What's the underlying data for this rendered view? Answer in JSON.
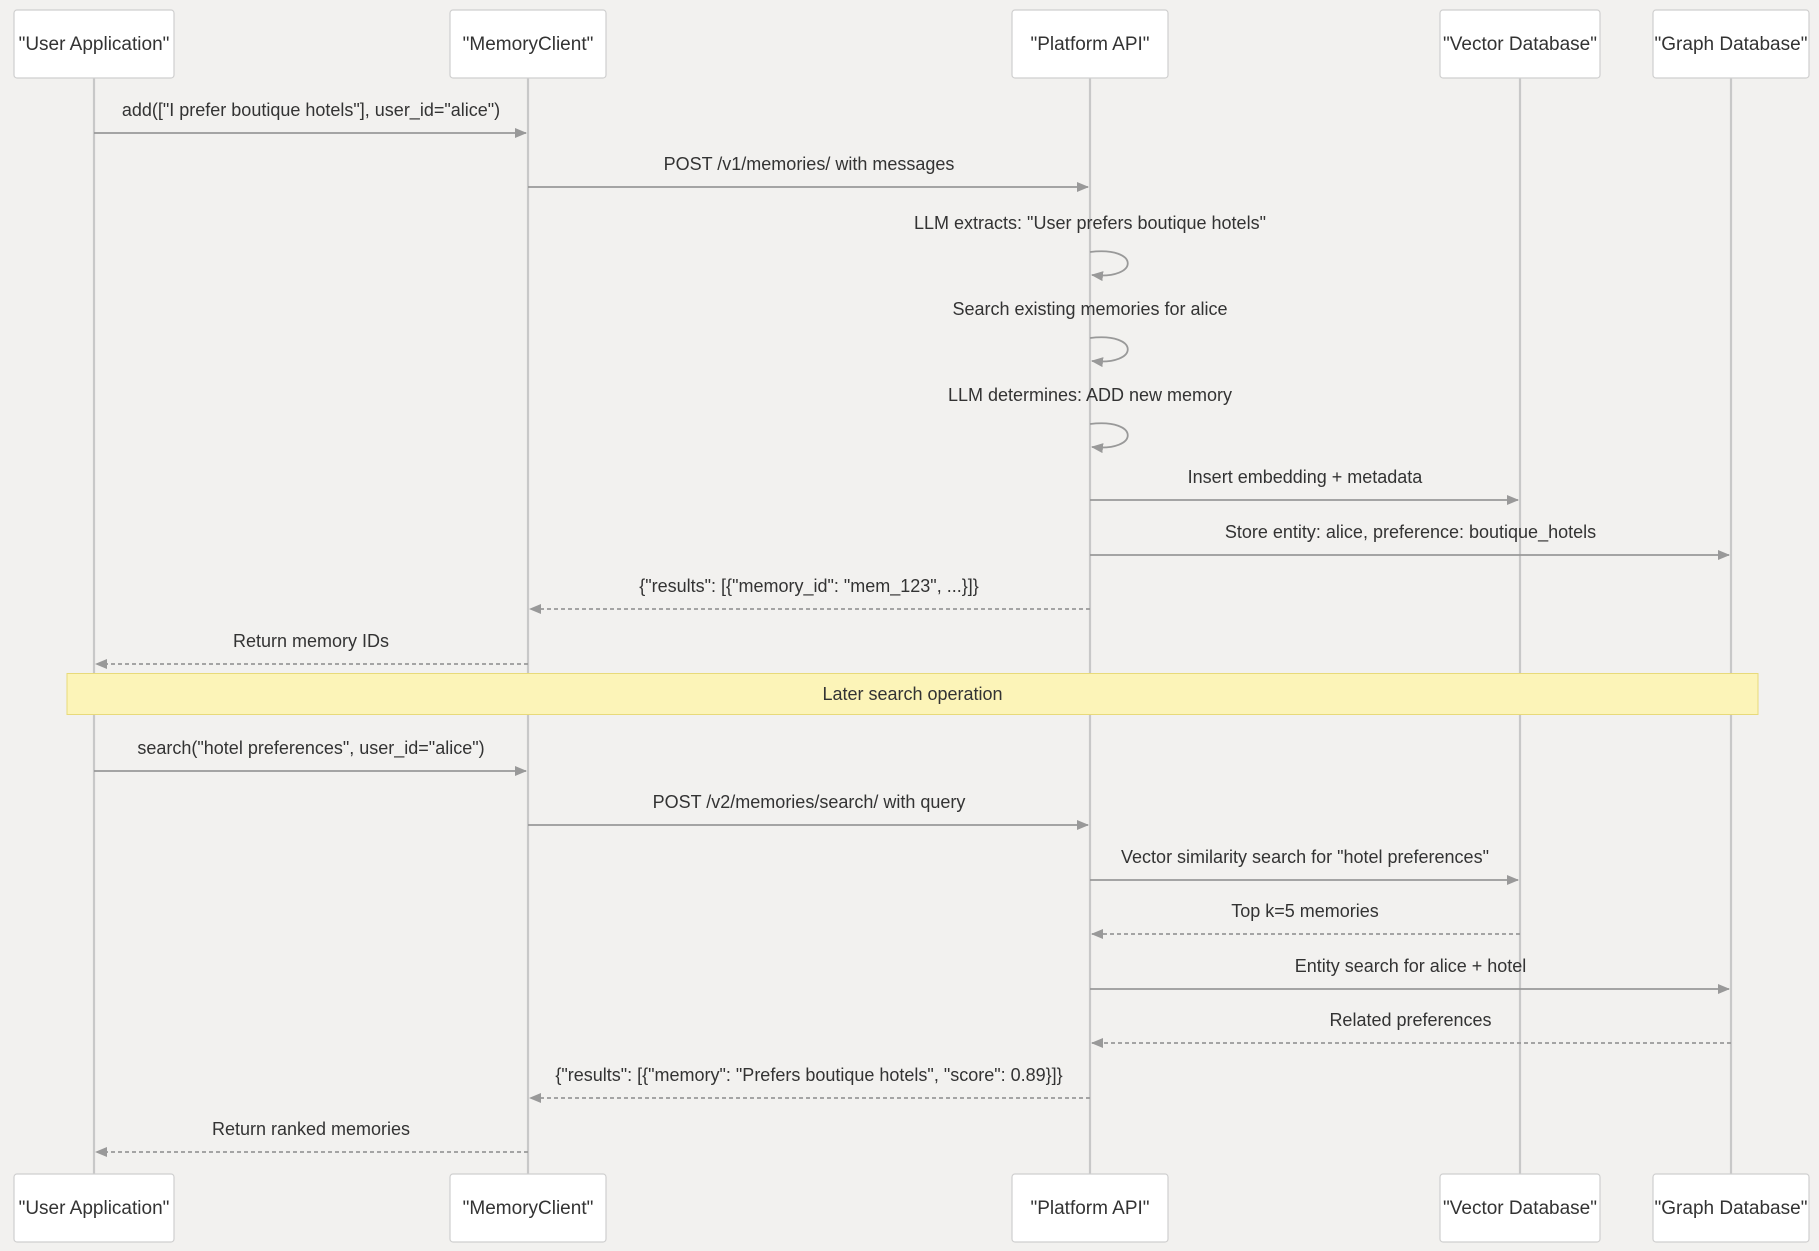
{
  "participants": [
    {
      "id": "user",
      "label": "\"User Application\""
    },
    {
      "id": "client",
      "label": "\"MemoryClient\""
    },
    {
      "id": "api",
      "label": "\"Platform API\""
    },
    {
      "id": "vector",
      "label": "\"Vector Database\""
    },
    {
      "id": "graph",
      "label": "\"Graph Database\""
    }
  ],
  "steps": [
    {
      "kind": "msg",
      "from": "user",
      "to": "client",
      "style": "solid",
      "text": "add([\"I prefer boutique hotels\"], user_id=\"alice\")"
    },
    {
      "kind": "msg",
      "from": "client",
      "to": "api",
      "style": "solid",
      "text": "POST /v1/memories/ with messages"
    },
    {
      "kind": "self",
      "on": "api",
      "text": "LLM extracts: \"User prefers boutique hotels\""
    },
    {
      "kind": "self",
      "on": "api",
      "text": "Search existing memories for alice"
    },
    {
      "kind": "self",
      "on": "api",
      "text": "LLM determines: ADD new memory"
    },
    {
      "kind": "msg",
      "from": "api",
      "to": "vector",
      "style": "solid",
      "text": "Insert embedding + metadata"
    },
    {
      "kind": "msg",
      "from": "api",
      "to": "graph",
      "style": "solid",
      "text": "Store entity: alice, preference: boutique_hotels"
    },
    {
      "kind": "msg",
      "from": "api",
      "to": "client",
      "style": "dashed",
      "text": "{\"results\": [{\"memory_id\": \"mem_123\", ...}]}"
    },
    {
      "kind": "msg",
      "from": "client",
      "to": "user",
      "style": "dashed",
      "text": "Return memory IDs"
    },
    {
      "kind": "note",
      "text": "Later search operation"
    },
    {
      "kind": "msg",
      "from": "user",
      "to": "client",
      "style": "solid",
      "text": "search(\"hotel preferences\", user_id=\"alice\")"
    },
    {
      "kind": "msg",
      "from": "client",
      "to": "api",
      "style": "solid",
      "text": "POST /v2/memories/search/ with query"
    },
    {
      "kind": "msg",
      "from": "api",
      "to": "vector",
      "style": "solid",
      "text": "Vector similarity search for \"hotel preferences\""
    },
    {
      "kind": "msg",
      "from": "vector",
      "to": "api",
      "style": "dashed",
      "text": "Top k=5 memories"
    },
    {
      "kind": "msg",
      "from": "api",
      "to": "graph",
      "style": "solid",
      "text": "Entity search for alice + hotel"
    },
    {
      "kind": "msg",
      "from": "graph",
      "to": "api",
      "style": "dashed",
      "text": "Related preferences"
    },
    {
      "kind": "msg",
      "from": "api",
      "to": "client",
      "style": "dashed",
      "text": "{\"results\": [{\"memory\": \"Prefers boutique hotels\", \"score\": 0.89}]}"
    },
    {
      "kind": "msg",
      "from": "client",
      "to": "user",
      "style": "dashed",
      "text": "Return ranked memories"
    }
  ],
  "colors": {
    "lifeline": "#c8c8c8",
    "arrow": "#999999",
    "note_fill": "#fcf4b8",
    "background": "#f2f1ef"
  }
}
